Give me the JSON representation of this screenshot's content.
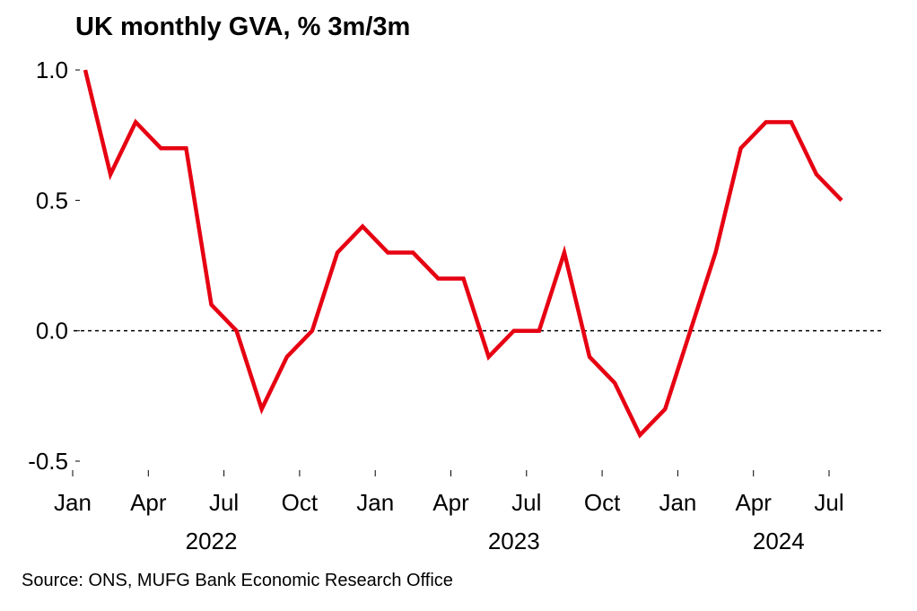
{
  "title": "UK monthly GVA, % 3m/3m",
  "source": "Source: ONS, MUFG Bank Economic Research Office",
  "chart_data": {
    "type": "line",
    "title": "UK monthly GVA, % 3m/3m",
    "xlabel": "",
    "ylabel": "",
    "x": [
      "2022-01",
      "2022-02",
      "2022-03",
      "2022-04",
      "2022-05",
      "2022-06",
      "2022-07",
      "2022-08",
      "2022-09",
      "2022-10",
      "2022-11",
      "2022-12",
      "2023-01",
      "2023-02",
      "2023-03",
      "2023-04",
      "2023-05",
      "2023-06",
      "2023-07",
      "2023-08",
      "2023-09",
      "2023-10",
      "2023-11",
      "2023-12",
      "2024-01",
      "2024-02",
      "2024-03",
      "2024-04",
      "2024-05",
      "2024-06",
      "2024-07"
    ],
    "series": [
      {
        "values": [
          1.0,
          0.6,
          0.8,
          0.7,
          0.7,
          0.1,
          0.0,
          -0.3,
          -0.1,
          0.0,
          0.3,
          0.4,
          0.3,
          0.3,
          0.2,
          0.2,
          -0.1,
          0.0,
          0.0,
          0.3,
          -0.1,
          -0.2,
          -0.4,
          -0.3,
          0.0,
          0.3,
          0.7,
          0.8,
          0.8,
          0.6,
          0.5
        ],
        "color": "#E60012"
      }
    ],
    "ylim": [
      -0.5,
      1.0
    ],
    "yticks": [
      "-0.5",
      "0.0",
      "0.5",
      "1.0"
    ],
    "ytick_values": [
      -0.5,
      0.0,
      0.5,
      1.0
    ],
    "xtick_labels": [
      {
        "month_index": 0,
        "label": "Jan"
      },
      {
        "month_index": 3,
        "label": "Apr"
      },
      {
        "month_index": 6,
        "label": "Jul"
      },
      {
        "month_index": 9,
        "label": "Oct"
      },
      {
        "month_index": 12,
        "label": "Jan"
      },
      {
        "month_index": 15,
        "label": "Apr"
      },
      {
        "month_index": 18,
        "label": "Jul"
      },
      {
        "month_index": 21,
        "label": "Oct"
      },
      {
        "month_index": 24,
        "label": "Jan"
      },
      {
        "month_index": 27,
        "label": "Apr"
      },
      {
        "month_index": 30,
        "label": "Jul"
      }
    ],
    "year_labels": [
      {
        "center_month_index": 5.5,
        "label": "2022"
      },
      {
        "center_month_index": 17.5,
        "label": "2023"
      },
      {
        "center_month_index": 28,
        "label": "2024"
      }
    ],
    "zero_line": "dashed",
    "grid": false,
    "legend": "none"
  }
}
